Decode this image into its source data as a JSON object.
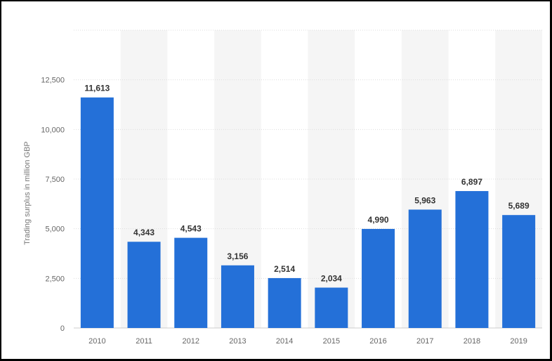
{
  "chart_data": {
    "type": "bar",
    "title": "",
    "xlabel": "",
    "ylabel": "Trading surplus in million GBP",
    "categories": [
      "2010",
      "2011",
      "2012",
      "2013",
      "2014",
      "2015",
      "2016",
      "2017",
      "2018",
      "2019"
    ],
    "values": [
      11613,
      4343,
      4543,
      3156,
      2514,
      2034,
      4990,
      5963,
      6897,
      5689
    ],
    "value_labels": [
      "11,613",
      "4,343",
      "4,543",
      "3,156",
      "2,514",
      "2,034",
      "4,990",
      "5,963",
      "6,897",
      "5,689"
    ],
    "ylim": [
      0,
      15000
    ],
    "yticks": [
      0,
      2500,
      5000,
      7500,
      10000,
      12500,
      15000
    ],
    "ytick_labels": [
      "0",
      "2,500",
      "5,000",
      "7,500",
      "10,000",
      "12,500",
      ""
    ],
    "grid": true,
    "bar_color": "#2470d8"
  }
}
